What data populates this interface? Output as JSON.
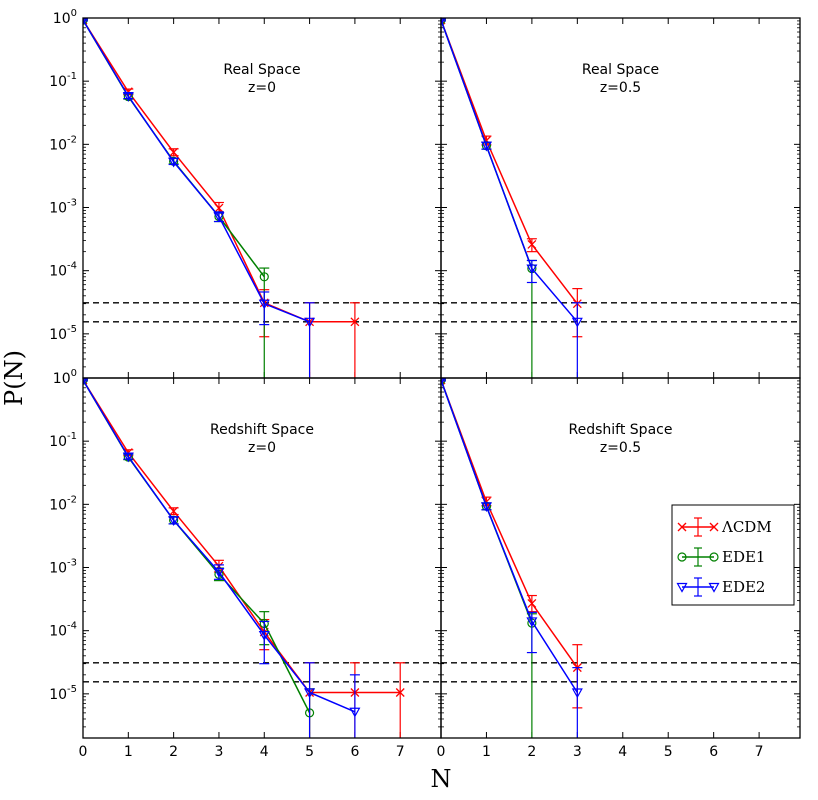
{
  "chart_data": {
    "type": "line",
    "xlabel": "N",
    "ylabel": "P(N)",
    "xlim": [
      0,
      7.9
    ],
    "ylim": [
      2e-06,
      1
    ],
    "yscale": "log",
    "x_ticks": [
      "0",
      "1",
      "2",
      "3",
      "4",
      "5",
      "6",
      "7"
    ],
    "y_ticks": [
      {
        "base": "10",
        "exp": "0"
      },
      {
        "base": "10",
        "exp": "-1"
      },
      {
        "base": "10",
        "exp": "-2"
      },
      {
        "base": "10",
        "exp": "-3"
      },
      {
        "base": "10",
        "exp": "-4"
      },
      {
        "base": "10",
        "exp": "-5"
      }
    ],
    "y_tick_values": [
      1,
      0.1,
      0.01,
      0.001,
      0.0001,
      1e-05
    ],
    "reference_lines": [
      3.1e-05,
      1.55e-05
    ],
    "legend": {
      "location": "right",
      "entries": [
        {
          "label": "ΛCDM",
          "color": "#ff0000",
          "marker": "x"
        },
        {
          "label": "EDE1",
          "color": "#008000",
          "marker": "o"
        },
        {
          "label": "EDE2",
          "color": "#0000ff",
          "marker": "v"
        }
      ]
    },
    "panels": [
      {
        "id": "real-z0",
        "title_line1": "Real Space",
        "title_line2": "z=0",
        "series": [
          {
            "name": "ΛCDM",
            "color": "#ff0000",
            "marker": "x",
            "x": [
              0,
              1,
              2,
              3,
              4,
              5,
              6
            ],
            "y": [
              0.93,
              0.068,
              0.0075,
              0.00098,
              3.1e-05,
              1.55e-05,
              1.55e-05
            ],
            "err_hi": [
              0.96,
              0.075,
              0.0085,
              0.0012,
              5e-05,
              3.1e-05,
              3.1e-05
            ],
            "err_lo": [
              0.9,
              0.061,
              0.0066,
              0.00082,
              9e-06,
              2e-06,
              2e-06
            ]
          },
          {
            "name": "EDE1",
            "color": "#008000",
            "marker": "o",
            "x": [
              0,
              1,
              2,
              3,
              4
            ],
            "y": [
              0.93,
              0.057,
              0.0054,
              0.00072,
              8e-05
            ],
            "err_hi": [
              0.96,
              0.063,
              0.006,
              0.00085,
              0.00011
            ],
            "err_lo": [
              0.9,
              0.052,
              0.0049,
              0.0006,
              2e-06
            ]
          },
          {
            "name": "EDE2",
            "color": "#0000ff",
            "marker": "v",
            "x": [
              0,
              1,
              2,
              3,
              4,
              5
            ],
            "y": [
              0.93,
              0.058,
              0.0053,
              0.00072,
              3e-05,
              1.55e-05
            ],
            "err_hi": [
              0.96,
              0.064,
              0.006,
              0.00085,
              4.6e-05,
              3.1e-05
            ],
            "err_lo": [
              0.9,
              0.053,
              0.0048,
              0.0006,
              1.4e-05,
              2e-06
            ]
          }
        ]
      },
      {
        "id": "real-z05",
        "title_line1": "Real Space",
        "title_line2": "z=0.5",
        "series": [
          {
            "name": "ΛCDM",
            "color": "#ff0000",
            "marker": "x",
            "x": [
              0,
              1,
              2,
              3
            ],
            "y": [
              0.93,
              0.0115,
              0.00026,
              3e-05
            ],
            "err_hi": [
              0.96,
              0.0135,
              0.00032,
              5.2e-05
            ],
            "err_lo": [
              0.9,
              0.0098,
              0.0002,
              9e-06
            ]
          },
          {
            "name": "EDE1",
            "color": "#008000",
            "marker": "o",
            "x": [
              0,
              1,
              2
            ],
            "y": [
              0.93,
              0.0095,
              0.000108
            ],
            "err_hi": [
              0.96,
              0.0108,
              0.000145
            ],
            "err_lo": [
              0.9,
              0.0084,
              2e-06
            ]
          },
          {
            "name": "EDE2",
            "color": "#0000ff",
            "marker": "v",
            "x": [
              0,
              1,
              2,
              3
            ],
            "y": [
              0.93,
              0.0095,
              0.000108,
              1.55e-05
            ],
            "err_hi": [
              0.96,
              0.0108,
              0.000145,
              3.1e-05
            ],
            "err_lo": [
              0.9,
              0.0084,
              6.5e-05,
              2e-06
            ]
          }
        ]
      },
      {
        "id": "redshift-z0",
        "title_line1": "Redshift Space",
        "title_line2": "z=0",
        "series": [
          {
            "name": "ΛCDM",
            "color": "#ff0000",
            "marker": "x",
            "x": [
              0,
              1,
              2,
              3,
              4,
              5,
              6,
              7
            ],
            "y": [
              0.93,
              0.066,
              0.0078,
              0.00105,
              9.5e-05,
              1.05e-05,
              1.05e-05,
              1.05e-05
            ],
            "err_hi": [
              0.96,
              0.073,
              0.0088,
              0.0013,
              0.00015,
              3.1e-05,
              3.1e-05,
              3.1e-05
            ],
            "err_lo": [
              0.9,
              0.059,
              0.0069,
              0.00085,
              5e-05,
              2e-06,
              2e-06,
              2e-06
            ]
          },
          {
            "name": "EDE1",
            "color": "#008000",
            "marker": "o",
            "x": [
              0,
              1,
              2,
              3,
              4,
              5
            ],
            "y": [
              0.93,
              0.056,
              0.0056,
              0.00078,
              0.00013,
              5e-06
            ],
            "err_hi": [
              0.96,
              0.062,
              0.0063,
              0.00098,
              0.0002,
              1.2e-05
            ],
            "err_lo": [
              0.9,
              0.051,
              0.0049,
              0.00062,
              6e-05,
              2e-06
            ]
          },
          {
            "name": "EDE2",
            "color": "#0000ff",
            "marker": "v",
            "x": [
              0,
              1,
              2,
              3,
              4,
              5,
              6
            ],
            "y": [
              0.93,
              0.057,
              0.0056,
              0.00085,
              8.5e-05,
              1.05e-05,
              5.2e-06
            ],
            "err_hi": [
              0.96,
              0.063,
              0.0063,
              0.0011,
              0.00014,
              3.1e-05,
              2e-05
            ],
            "err_lo": [
              0.9,
              0.052,
              0.0049,
              0.00065,
              3e-05,
              2e-06,
              2e-06
            ]
          }
        ]
      },
      {
        "id": "redshift-z05",
        "title_line1": "Redshift Space",
        "title_line2": "z=0.5",
        "series": [
          {
            "name": "ΛCDM",
            "color": "#ff0000",
            "marker": "x",
            "x": [
              0,
              1,
              2,
              3
            ],
            "y": [
              0.93,
              0.011,
              0.00027,
              2.6e-05
            ],
            "err_hi": [
              0.96,
              0.013,
              0.00036,
              6e-05
            ],
            "err_lo": [
              0.9,
              0.0095,
              0.0002,
              6e-06
            ]
          },
          {
            "name": "EDE1",
            "color": "#008000",
            "marker": "o",
            "x": [
              0,
              1,
              2
            ],
            "y": [
              0.93,
              0.0093,
              0.000132
            ],
            "err_hi": [
              0.96,
              0.0105,
              0.000185
            ],
            "err_lo": [
              0.9,
              0.0082,
              2e-06
            ]
          },
          {
            "name": "EDE2",
            "color": "#0000ff",
            "marker": "v",
            "x": [
              0,
              1,
              2,
              3
            ],
            "y": [
              0.93,
              0.0093,
              0.00014,
              1.05e-05
            ],
            "err_hi": [
              0.96,
              0.0105,
              0.000195,
              2.6e-05
            ],
            "err_lo": [
              0.9,
              0.0082,
              4.5e-05,
              2e-06
            ]
          }
        ]
      }
    ]
  }
}
